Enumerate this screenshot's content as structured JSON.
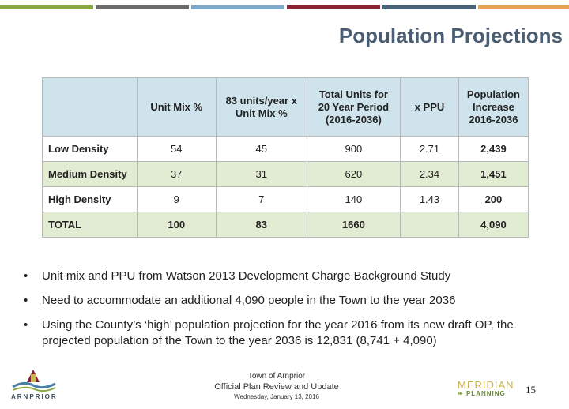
{
  "colors": {
    "topbar": [
      "#8aa842",
      "#6b6b6b",
      "#7fa9c8",
      "#8b2132",
      "#4a6478",
      "#e9a252"
    ],
    "title": "#4a5d73",
    "header_bg": "#cfe3ec",
    "row_green": "#e2ecd2"
  },
  "title": "Population Projections",
  "table": {
    "headers": [
      "",
      "Unit Mix %",
      "83 units/year x Unit Mix %",
      "Total Units for 20 Year Period (2016-2036)",
      "x PPU",
      "Population Increase 2016-2036"
    ],
    "rows": [
      {
        "label": "Low Density",
        "unit_mix": "54",
        "units_year": "45",
        "total_units": "900",
        "ppu": "2.71",
        "increase": "2,439"
      },
      {
        "label": "Medium Density",
        "unit_mix": "37",
        "units_year": "31",
        "total_units": "620",
        "ppu": "2.34",
        "increase": "1,451"
      },
      {
        "label": "High Density",
        "unit_mix": "9",
        "units_year": "7",
        "total_units": "140",
        "ppu": "1.43",
        "increase": "200"
      },
      {
        "label": "TOTAL",
        "unit_mix": "100",
        "units_year": "83",
        "total_units": "1660",
        "ppu": "",
        "increase": "4,090"
      }
    ]
  },
  "bullets": [
    "Unit mix and PPU from Watson 2013 Development Charge Background Study",
    "Need to accommodate an additional 4,090 people in the Town to the year 2036",
    "Using the County’s ‘high’ population projection for the year 2016 from its new draft OP, the projected population of the Town to the year 2036 is 12,831 (8,741 + 4,090)"
  ],
  "bullet_glyph": "•",
  "footer": {
    "line1": "Town of Arnprior",
    "line2": "Official Plan Review and Update",
    "line3": "Wednesday, January 13, 2016",
    "logo_left_name": "ARNPRIOR",
    "logo_right_line1": "MERIDIAN",
    "logo_right_line2": "PLANNING",
    "page_number": "15"
  }
}
